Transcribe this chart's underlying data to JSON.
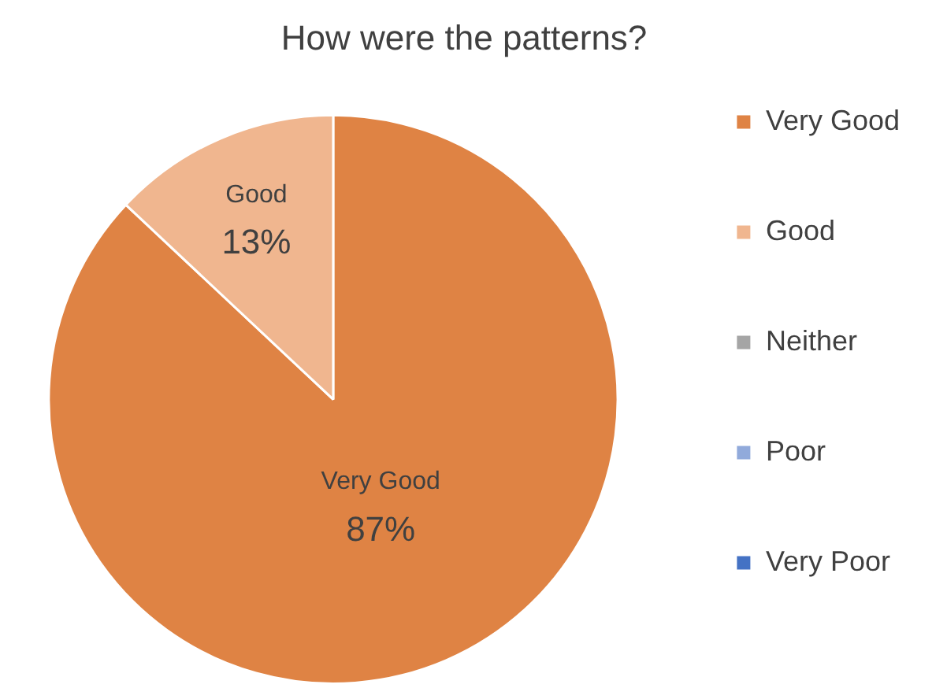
{
  "chart_data": {
    "type": "pie",
    "title": "How were the patterns?",
    "categories": [
      "Very Good",
      "Good",
      "Neither",
      "Poor",
      "Very Poor"
    ],
    "values": [
      87,
      13,
      0,
      0,
      0
    ],
    "value_labels": [
      "87%",
      "13%",
      null,
      null,
      null
    ],
    "colors": [
      "#df8344",
      "#f0b68f",
      "#a5a5a5",
      "#91aadb",
      "#4472c4"
    ],
    "legend": "right"
  }
}
